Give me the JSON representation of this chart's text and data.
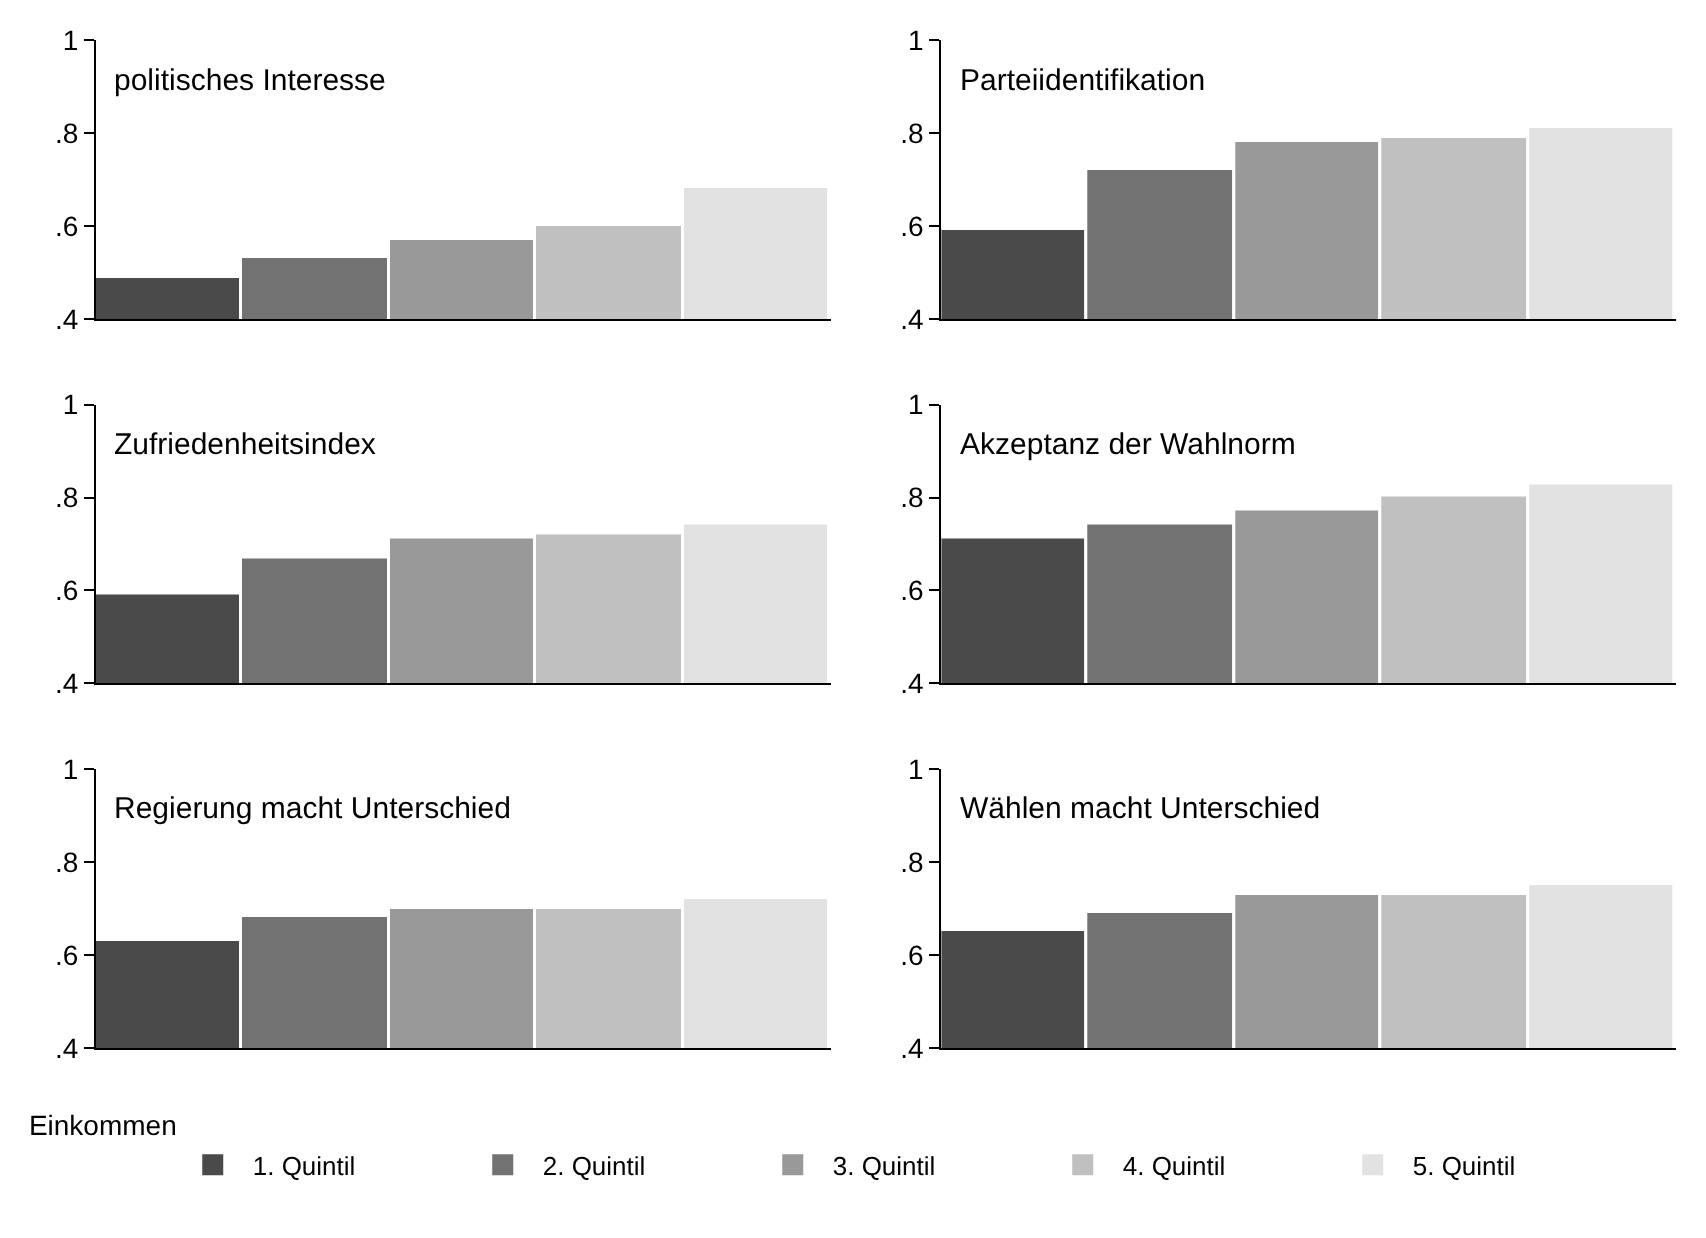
{
  "chart_data": [
    {
      "type": "bar",
      "title": "politisches Interesse",
      "categories": [
        null
      ],
      "legend": "bottom",
      "legend_title": "Einkommen",
      "tick_labels": "y",
      "ylim": [
        0.4,
        1
      ],
      "yticks": [
        {
          "value": 0.4,
          "label": ".4"
        },
        {
          "value": 0.6,
          "label": ".6"
        },
        {
          "value": 0.8,
          "label": ".8"
        },
        1
      ],
      "series": [
        {
          "name": "1. Quintil",
          "color": "#4a4a4a",
          "values": [
            0.49
          ]
        },
        {
          "name": "2. Quintil",
          "color": "#727272",
          "values": [
            0.53
          ]
        },
        {
          "name": "3. Quintil",
          "color": "#999999",
          "values": [
            0.57
          ]
        },
        {
          "name": "4. Quintil",
          "color": "#c0c0c0",
          "values": [
            0.6
          ]
        },
        {
          "name": "5. Quintil",
          "color": "#e2e2e2",
          "values": [
            0.68
          ]
        }
      ]
    },
    {
      "type": "bar",
      "title": "Parteiidentifikation",
      "categories": [
        null
      ],
      "tick_labels": "y",
      "ylim": [
        0.4,
        1
      ],
      "yticks": [
        {
          "value": 0.4,
          "label": ".4"
        },
        {
          "value": 0.6,
          "label": ".6"
        },
        {
          "value": 0.8,
          "label": ".8"
        },
        1
      ],
      "series": [
        {
          "color": "#4a4a4a",
          "values": [
            0.59
          ]
        },
        {
          "color": "#727272",
          "values": [
            0.72
          ]
        },
        {
          "color": "#999999",
          "values": [
            0.78
          ]
        },
        {
          "color": "#c0c0c0",
          "values": [
            0.79
          ]
        },
        {
          "color": "#e2e2e2",
          "values": [
            0.81
          ]
        }
      ]
    },
    {
      "type": "bar",
      "title": "Zufriedenheitsindex",
      "categories": [
        null
      ],
      "tick_labels": "y",
      "ylim": [
        0.4,
        1
      ],
      "yticks": [
        {
          "value": 0.4,
          "label": ".4"
        },
        {
          "value": 0.6,
          "label": ".6"
        },
        {
          "value": 0.8,
          "label": ".8"
        },
        1
      ],
      "series": [
        {
          "color": "#4a4a4a",
          "values": [
            0.59
          ]
        },
        {
          "color": "#727272",
          "values": [
            0.67
          ]
        },
        {
          "color": "#999999",
          "values": [
            0.71
          ]
        },
        {
          "color": "#c0c0c0",
          "values": [
            0.72
          ]
        },
        {
          "color": "#e2e2e2",
          "values": [
            0.74
          ]
        }
      ]
    },
    {
      "type": "bar",
      "title": "Akzeptanz der Wahlnorm",
      "categories": [
        null
      ],
      "tick_labels": "y",
      "ylim": [
        0.4,
        1
      ],
      "yticks": [
        {
          "value": 0.4,
          "label": ".4"
        },
        {
          "value": 0.6,
          "label": ".6"
        },
        {
          "value": 0.8,
          "label": ".8"
        },
        1
      ],
      "series": [
        {
          "color": "#4a4a4a",
          "values": [
            0.71
          ]
        },
        {
          "color": "#727272",
          "values": [
            0.74
          ]
        },
        {
          "color": "#999999",
          "values": [
            0.77
          ]
        },
        {
          "color": "#c0c0c0",
          "values": [
            0.8
          ]
        },
        {
          "color": "#e2e2e2",
          "values": [
            0.83
          ]
        }
      ]
    },
    {
      "type": "bar",
      "title": "Regierung macht Unterschied",
      "categories": [
        null
      ],
      "tick_labels": "y",
      "ylim": [
        0.4,
        1
      ],
      "yticks": [
        {
          "value": 0.4,
          "label": ".4"
        },
        {
          "value": 0.6,
          "label": ".6"
        },
        {
          "value": 0.8,
          "label": ".8"
        },
        1
      ],
      "series": [
        {
          "color": "#4a4a4a",
          "values": [
            0.63
          ]
        },
        {
          "color": "#727272",
          "values": [
            0.68
          ]
        },
        {
          "color": "#999999",
          "values": [
            0.7
          ]
        },
        {
          "color": "#c0c0c0",
          "values": [
            0.7
          ]
        },
        {
          "color": "#e2e2e2",
          "values": [
            0.72
          ]
        }
      ]
    },
    {
      "type": "bar",
      "title": "Wählen macht Unterschied",
      "categories": [
        null
      ],
      "tick_labels": "y",
      "ylim": [
        0.4,
        1
      ],
      "yticks": [
        {
          "value": 0.4,
          "label": ".4"
        },
        {
          "value": 0.6,
          "label": ".6"
        },
        {
          "value": 0.8,
          "label": ".8"
        },
        1
      ],
      "series": [
        {
          "color": "#4a4a4a",
          "values": [
            0.65
          ]
        },
        {
          "color": "#727272",
          "values": [
            0.69
          ]
        },
        {
          "color": "#999999",
          "values": [
            0.73
          ]
        },
        {
          "color": "#c0c0c0",
          "values": [
            0.73
          ]
        },
        {
          "color": "#e2e2e2",
          "values": [
            0.75
          ]
        }
      ]
    }
  ]
}
